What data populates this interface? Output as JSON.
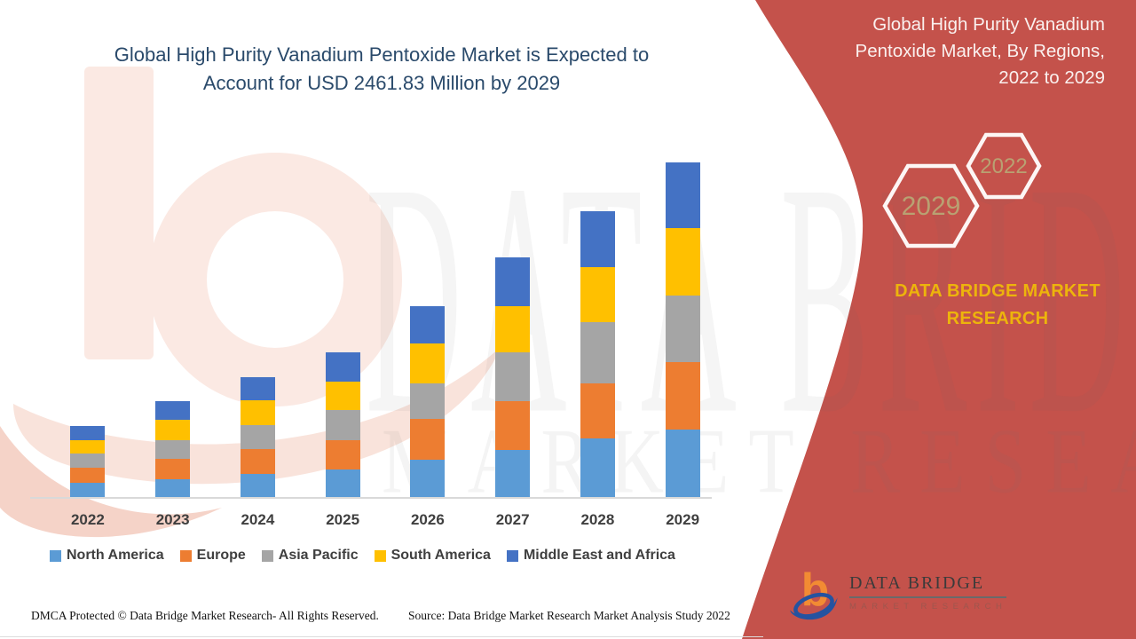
{
  "colors": {
    "accent_red": "#C4524B",
    "title_blue": "#2A4A6B",
    "gold": "#EDB40C",
    "hex_year_tan": "#B9A172",
    "axis_text": "#3F3F3F"
  },
  "main_title_lines": [
    "Global High Purity Vanadium Pentoxide Market is Expected to",
    "Account for USD 2461.83 Million by 2029"
  ],
  "right_panel": {
    "title_lines": [
      "Global High Purity Vanadium",
      "Pentoxide Market, By Regions,",
      "2022 to 2029"
    ],
    "hex_back_year": "2029",
    "hex_front_year": "2022",
    "brand_caption_lines": [
      "DATA BRIDGE MARKET",
      "RESEARCH"
    ]
  },
  "chart_data": {
    "type": "bar",
    "stacked": true,
    "title": "Global High Purity Vanadium Pentoxide Market is Expected to Account for USD 2461.83 Million by 2029",
    "unit": "USD Million",
    "categories": [
      "2022",
      "2023",
      "2024",
      "2025",
      "2026",
      "2027",
      "2028",
      "2029"
    ],
    "series": [
      {
        "name": "North America",
        "color": "#5B9BD5",
        "values": [
          105,
          133,
          170,
          203,
          275,
          345,
          432,
          493
        ]
      },
      {
        "name": "Europe",
        "color": "#ED7D31",
        "values": [
          113,
          146,
          185,
          212,
          299,
          360,
          404,
          502
        ]
      },
      {
        "name": "Asia Pacific",
        "color": "#A5A5A5",
        "values": [
          105,
          142,
          175,
          225,
          262,
          356,
          447,
          484
        ]
      },
      {
        "name": "South America",
        "color": "#FFC000",
        "values": [
          98,
          149,
          181,
          207,
          295,
          342,
          408,
          498
        ]
      },
      {
        "name": "Middle East and Africa",
        "color": "#4472C4",
        "values": [
          103,
          135,
          170,
          218,
          273,
          360,
          410,
          484
        ]
      }
    ],
    "totals_estimated": [
      524,
      705,
      881,
      1065,
      1404,
      1763,
      2101,
      2462
    ],
    "value_2029_label": "USD 2461.83 Million",
    "ylim": [
      0,
      2600
    ],
    "grid": false,
    "legend_position": "bottom"
  },
  "watermark": {
    "line1": "DATA BRIDGE",
    "line2": "MARKET RESEARCH"
  },
  "footer": {
    "left": "DMCA Protected © Data Bridge Market Research- All Rights Reserved.",
    "right": "Source: Data Bridge Market Research Market Analysis Study 2022"
  },
  "logo": {
    "name": "DATA BRIDGE",
    "subtitle": "MARKET RESEARCH"
  }
}
